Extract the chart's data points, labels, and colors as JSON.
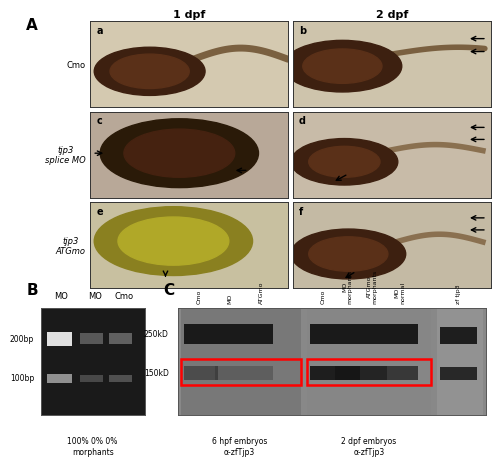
{
  "title": "",
  "panel_A_label": "A",
  "panel_B_label": "B",
  "panel_C_label": "C",
  "col_headers": [
    "1 dpf",
    "2 dpf"
  ],
  "row_labels": [
    "Cmo",
    "tjp3\nsplice MO",
    "tjp3\nATGmo"
  ],
  "sub_labels": [
    "a",
    "b",
    "c",
    "d",
    "e",
    "f"
  ],
  "gel_lane_labels_B": [
    "MO",
    "MO",
    "Cmo"
  ],
  "gel_markers_B": [
    "200bp",
    "100bp"
  ],
  "gel_caption_B": "100% 0% 0%\nmorphants",
  "western_lane_labels": [
    "Cmo",
    "MO",
    "ATGmo",
    "Cmo",
    "MO\nmorphants",
    "ATGmo\nmorphants",
    "MO\nnormal",
    "zf tjp3"
  ],
  "western_markers": [
    "250kD",
    "150kD"
  ],
  "western_caption_left": "6 hpf embryos\nα-zfTjp3",
  "western_caption_right": "2 dpf embryos\nα-zfTjp3",
  "red_box_color": "#ff0000",
  "bg_color": "#ffffff",
  "gel_bg": "#1a1a1a",
  "text_color": "#000000",
  "img_colors": [
    [
      "#d4c9b0",
      "#cec4ac"
    ],
    [
      "#b8a898",
      "#c8bba8"
    ],
    [
      "#c8c0a0",
      "#c4baa4"
    ]
  ]
}
